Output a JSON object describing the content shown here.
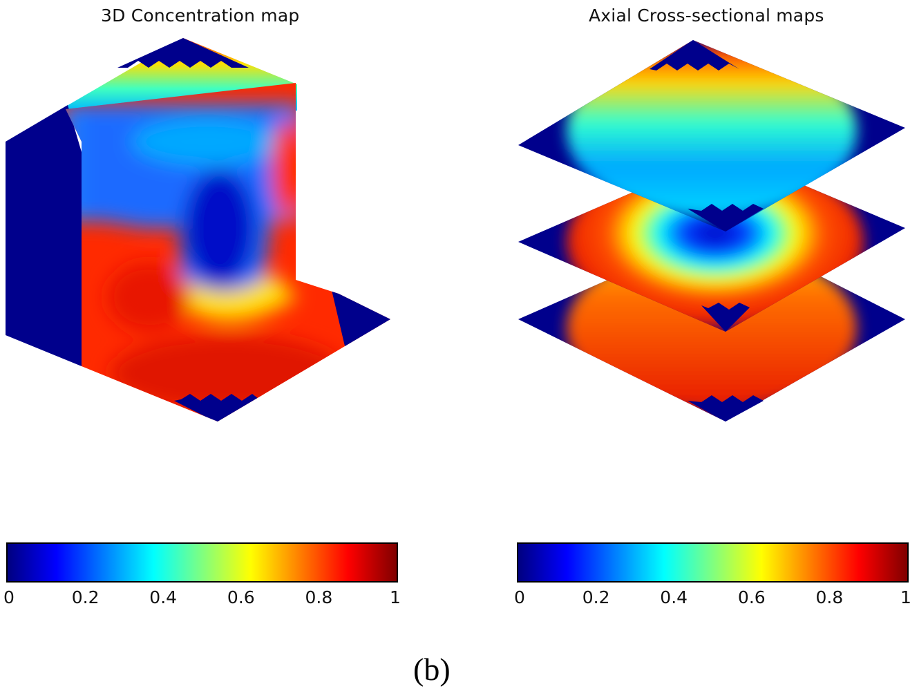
{
  "panels": {
    "left_title": "3D Concentration map",
    "right_title": "Axial Cross-sectional maps"
  },
  "caption": "(b)",
  "chart_data": [
    {
      "type": "heatmap",
      "title": "3D Concentration map",
      "colormap": "jet",
      "colorbar": {
        "range": [
          0,
          1
        ],
        "ticks": [
          "0",
          "0.2",
          "0.4",
          "0.6",
          "0.8",
          "1"
        ],
        "orientation": "horizontal",
        "placement": "bottom"
      }
    },
    {
      "type": "heatmap",
      "title": "Axial Cross-sectional maps",
      "colormap": "jet",
      "colorbar": {
        "range": [
          0,
          1
        ],
        "ticks": [
          "0",
          "0.2",
          "0.4",
          "0.6",
          "0.8",
          "1"
        ],
        "orientation": "horizontal",
        "placement": "bottom"
      }
    }
  ]
}
